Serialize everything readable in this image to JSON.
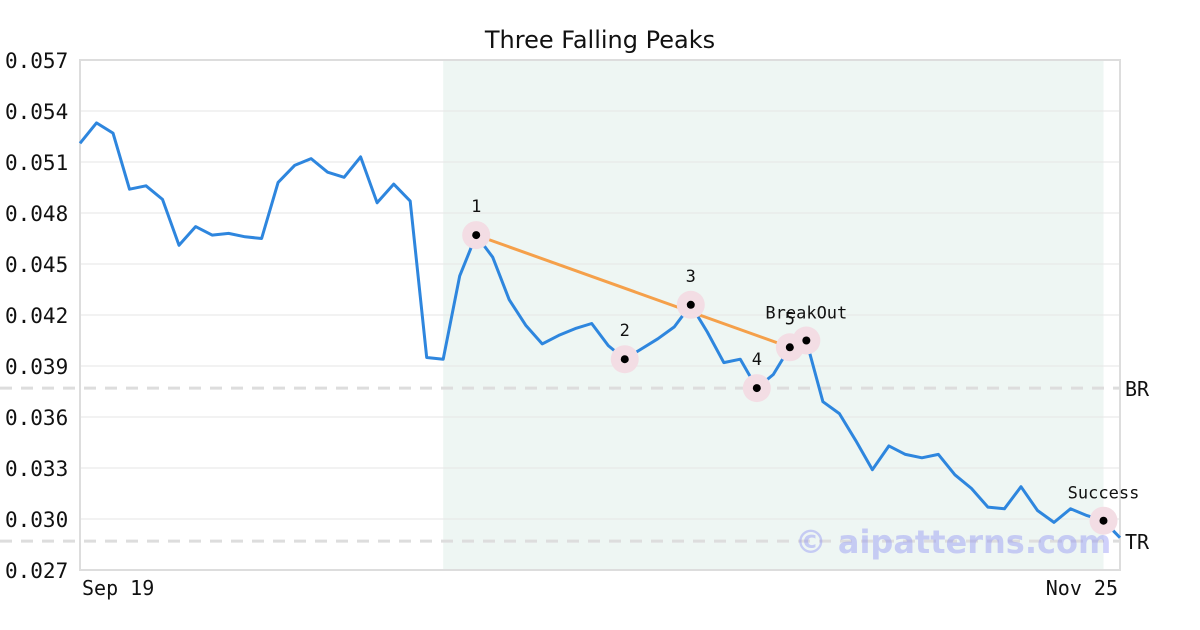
{
  "chart_data": {
    "type": "line",
    "title": "Three Falling Peaks",
    "xlabel": "",
    "ylabel": "",
    "ylim": [
      0.027,
      0.057
    ],
    "yticks": [
      "0.057",
      "0.054",
      "0.051",
      "0.048",
      "0.045",
      "0.042",
      "0.039",
      "0.036",
      "0.033",
      "0.030",
      "0.027"
    ],
    "xtick_labels": [
      "Sep 19",
      "Nov 25"
    ],
    "grid": true,
    "colors": {
      "price_line": "#2e86de",
      "trend_line": "#f5a04a",
      "pattern_zone": "#eef6f3",
      "level_line": "#dddddd",
      "marker_halo": "#f3dde4",
      "marker_dot": "#000000"
    },
    "series": [
      {
        "values": [
          0.0521,
          0.0533,
          0.0527,
          0.0494,
          0.0496,
          0.0488,
          0.0461,
          0.0472,
          0.0467,
          0.0468,
          0.0466,
          0.0465,
          0.0498,
          0.0508,
          0.0512,
          0.0504,
          0.0501,
          0.0513,
          0.0486,
          0.0497,
          0.0487,
          0.0395,
          0.0394,
          0.0443,
          0.0467,
          0.0454,
          0.0429,
          0.0414,
          0.0403,
          0.0408,
          0.0412,
          0.0415,
          0.0402,
          0.0394,
          0.04,
          0.0406,
          0.0413,
          0.0426,
          0.041,
          0.0392,
          0.0394,
          0.0377,
          0.0385,
          0.0401,
          0.0405,
          0.0369,
          0.0362,
          0.0346,
          0.0329,
          0.0343,
          0.0338,
          0.0336,
          0.0338,
          0.0326,
          0.0318,
          0.0307,
          0.0306,
          0.0319,
          0.0305,
          0.0298,
          0.0306,
          0.0302,
          0.0299,
          0.0289
        ]
      }
    ],
    "pattern_zone": {
      "start_index": 22,
      "end_index": 62
    },
    "trend_line": [
      {
        "index": 24,
        "value": 0.0467
      },
      {
        "index": 43,
        "value": 0.0401
      }
    ],
    "levels": [
      {
        "label": "BR",
        "value": 0.0377
      },
      {
        "label": "TR",
        "value": 0.0287
      }
    ],
    "annotations": [
      {
        "label": "1",
        "index": 24,
        "value": 0.0467
      },
      {
        "label": "2",
        "index": 33,
        "value": 0.0394
      },
      {
        "label": "3",
        "index": 37,
        "value": 0.0426
      },
      {
        "label": "4",
        "index": 41,
        "value": 0.0377
      },
      {
        "label": "5",
        "index": 43,
        "value": 0.0401
      },
      {
        "label": "BreakOut",
        "index": 44,
        "value": 0.0405
      },
      {
        "label": "Success",
        "index": 62,
        "value": 0.0299
      }
    ],
    "watermark": "© aipatterns.com"
  }
}
